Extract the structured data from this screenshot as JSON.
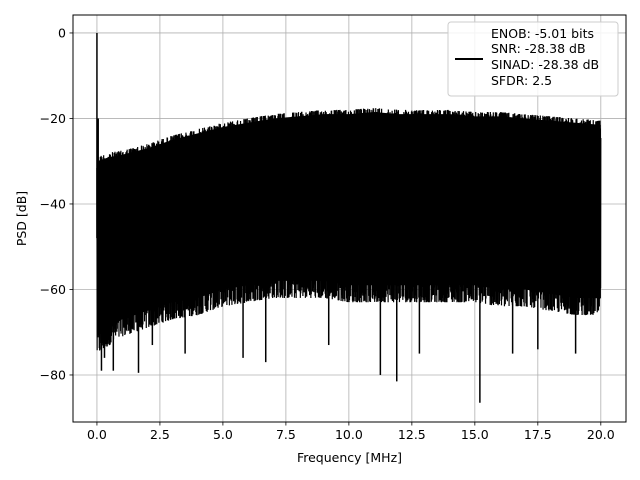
{
  "chart_data": {
    "type": "line",
    "xlabel": "Frequency [MHz]",
    "ylabel": "PSD [dB]",
    "xlim": [
      -0.95,
      21.0
    ],
    "ylim": [
      -91.0,
      4.2
    ],
    "xticks": [
      0.0,
      2.5,
      5.0,
      7.5,
      10.0,
      12.5,
      15.0,
      17.5,
      20.0
    ],
    "xtick_labels": [
      "0.0",
      "2.5",
      "5.0",
      "7.5",
      "10.0",
      "12.5",
      "15.0",
      "17.5",
      "20.0"
    ],
    "yticks": [
      0,
      -20,
      -40,
      -60,
      -80
    ],
    "ytick_labels": [
      "0",
      "−20",
      "−40",
      "−60",
      "−80"
    ],
    "grid": true,
    "legend_location": "top-right",
    "series": [
      {
        "legend_lines": [
          "ENOB: -5.01 bits",
          "SNR: -28.38 dB",
          "SINAD: -28.38 dB",
          "SFDR: 2.5"
        ],
        "color": "#000000",
        "envelope": {
          "x": [
            0.0,
            0.5,
            1.0,
            2.0,
            3.0,
            4.0,
            5.0,
            6.0,
            7.0,
            8.0,
            9.0,
            10.0,
            11.0,
            12.0,
            13.0,
            14.0,
            15.0,
            16.0,
            17.0,
            18.0,
            19.0,
            20.0
          ],
          "upper": [
            -29.0,
            -28.0,
            -27.5,
            -26.0,
            -24.0,
            -22.5,
            -21.0,
            -20.0,
            -19.0,
            -18.5,
            -18.0,
            -18.0,
            -17.5,
            -18.0,
            -18.0,
            -18.0,
            -18.5,
            -18.5,
            -19.0,
            -19.5,
            -20.0,
            -20.5
          ],
          "lower": [
            -72.0,
            -70.0,
            -68.0,
            -66.0,
            -64.0,
            -63.0,
            -61.0,
            -60.0,
            -59.0,
            -59.0,
            -59.0,
            -60.0,
            -60.0,
            -60.0,
            -60.0,
            -60.0,
            -60.0,
            -61.0,
            -61.0,
            -62.0,
            -63.0,
            -63.0
          ]
        },
        "peak": {
          "x": 0.0,
          "y": 0.0
        },
        "spurs": [
          {
            "x": 0.18,
            "y": -79.0
          },
          {
            "x": 0.3,
            "y": -76.0
          },
          {
            "x": 0.65,
            "y": -79.0
          },
          {
            "x": 1.65,
            "y": -79.5
          },
          {
            "x": 2.2,
            "y": -73.0
          },
          {
            "x": 3.5,
            "y": -75.0
          },
          {
            "x": 5.8,
            "y": -76.0
          },
          {
            "x": 6.7,
            "y": -77.0
          },
          {
            "x": 9.2,
            "y": -73.0
          },
          {
            "x": 11.25,
            "y": -80.0
          },
          {
            "x": 11.9,
            "y": -81.5
          },
          {
            "x": 12.8,
            "y": -75.0
          },
          {
            "x": 15.2,
            "y": -86.5
          },
          {
            "x": 16.5,
            "y": -75.0
          },
          {
            "x": 17.5,
            "y": -74.0
          },
          {
            "x": 19.0,
            "y": -75.0
          }
        ]
      }
    ]
  }
}
